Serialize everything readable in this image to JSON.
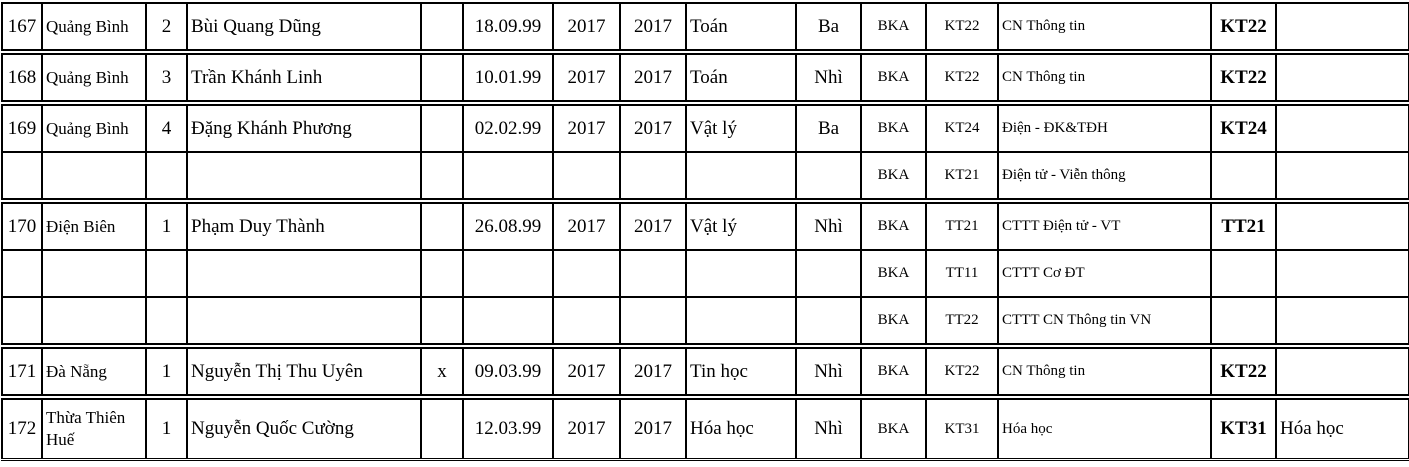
{
  "rows": [
    {
      "no": "167",
      "province": "Quảng Bình",
      "idx": "2",
      "name": "Bùi Quang Dũng",
      "mark": "",
      "dob": "18.09.99",
      "y1": "2017",
      "y2": "2017",
      "subject": "Toán",
      "prize": "Ba",
      "school": "BKA",
      "code": "KT22",
      "major": "CN Thông tin",
      "final_code": "KT22",
      "note": ""
    },
    {
      "no": "168",
      "province": "Quảng Bình",
      "idx": "3",
      "name": "Trần Khánh Linh",
      "mark": "",
      "dob": "10.01.99",
      "y1": "2017",
      "y2": "2017",
      "subject": "Toán",
      "prize": "Nhì",
      "school": "BKA",
      "code": "KT22",
      "major": "CN Thông tin",
      "final_code": "KT22",
      "note": ""
    },
    {
      "no": "169",
      "province": "Quảng Bình",
      "idx": "4",
      "name": "Đặng Khánh Phương",
      "mark": "",
      "dob": "02.02.99",
      "y1": "2017",
      "y2": "2017",
      "subject": "Vật lý",
      "prize": "Ba",
      "school": "BKA",
      "code": "KT24",
      "major": "Điện - ĐK&TĐH",
      "final_code": "KT24",
      "note": ""
    },
    {
      "no": "",
      "province": "",
      "idx": "",
      "name": "",
      "mark": "",
      "dob": "",
      "y1": "",
      "y2": "",
      "subject": "",
      "prize": "",
      "school": "BKA",
      "code": "KT21",
      "major": "Điện tử - Viễn thông",
      "final_code": "",
      "note": ""
    },
    {
      "no": "170",
      "province": "Điện Biên",
      "idx": "1",
      "name": "Phạm Duy Thành",
      "mark": "",
      "dob": "26.08.99",
      "y1": "2017",
      "y2": "2017",
      "subject": "Vật lý",
      "prize": "Nhì",
      "school": "BKA",
      "code": "TT21",
      "major": "CTTT Điện tử - VT",
      "final_code": "TT21",
      "note": ""
    },
    {
      "no": "",
      "province": "",
      "idx": "",
      "name": "",
      "mark": "",
      "dob": "",
      "y1": "",
      "y2": "",
      "subject": "",
      "prize": "",
      "school": "BKA",
      "code": "TT11",
      "major": "CTTT Cơ ĐT",
      "final_code": "",
      "note": ""
    },
    {
      "no": "",
      "province": "",
      "idx": "",
      "name": "",
      "mark": "",
      "dob": "",
      "y1": "",
      "y2": "",
      "subject": "",
      "prize": "",
      "school": "BKA",
      "code": "TT22",
      "major": "CTTT CN Thông tin VN",
      "final_code": "",
      "note": ""
    },
    {
      "no": "171",
      "province": "Đà Nẵng",
      "idx": "1",
      "name": "Nguyễn Thị Thu Uyên",
      "mark": "x",
      "dob": "09.03.99",
      "y1": "2017",
      "y2": "2017",
      "subject": "Tin học",
      "prize": "Nhì",
      "school": "BKA",
      "code": "KT22",
      "major": "CN Thông tin",
      "final_code": "KT22",
      "note": ""
    },
    {
      "no": "172",
      "province": "Thừa Thiên Huế",
      "idx": "1",
      "name": "Nguyễn Quốc Cường",
      "mark": "",
      "dob": "12.03.99",
      "y1": "2017",
      "y2": "2017",
      "subject": "Hóa học",
      "prize": "Nhì",
      "school": "BKA",
      "code": "KT31",
      "major": "Hóa học",
      "final_code": "KT31",
      "note": "Hóa học"
    }
  ]
}
